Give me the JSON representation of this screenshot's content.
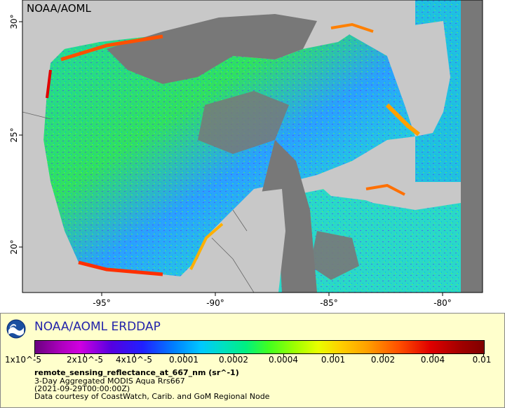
{
  "map": {
    "credit": "NOAA/AOML",
    "lon_ticks": [
      "-95°",
      "-90°",
      "-85°",
      "-80°"
    ],
    "lat_ticks": [
      "30°",
      "25°",
      "20°"
    ],
    "land_color": "#c8c8c8",
    "nodata_color": "#787878"
  },
  "legend": {
    "logo_icon": "noaa-logo-icon",
    "title": "NOAA/AOML ERDDAP",
    "colorbar_labels": [
      "1x10^-5",
      "2x10^-5",
      "4x10^-5",
      "0.0001",
      "0.0002",
      "0.0004",
      "0.001",
      "0.002",
      "0.004",
      "0.01"
    ],
    "variable": "remote_sensing_reflectance_at_667_nm (sr^-1)",
    "line1": "3-Day Aggregated MODIS Aqua Rrs667",
    "line2": "(2021-09-29T00:00:00Z)",
    "line3": "Data courtesy of CoastWatch, Carib. and GoM Regional Node",
    "panel_color": "#ffffcc",
    "title_color": "#2222aa"
  }
}
